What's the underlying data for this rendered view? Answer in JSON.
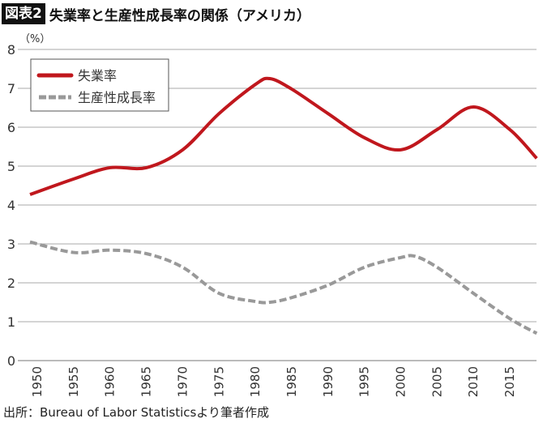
{
  "header": {
    "badge": "図表2",
    "title": "失業率と生産性成長率の関係（アメリカ）"
  },
  "source": "出所：Bureau of Labor Statisticsより筆者作成",
  "chart_data": {
    "type": "line",
    "title": "失業率と生産性成長率の関係（アメリカ）",
    "ylabel": "（%）",
    "ylim": [
      0,
      8
    ],
    "yticks": [
      "0",
      "1",
      "2",
      "3",
      "4",
      "5",
      "6",
      "7",
      "8"
    ],
    "xticks": [
      "1950",
      "1955",
      "1960",
      "1965",
      "1970",
      "1975",
      "1980",
      "1985",
      "1990",
      "1995",
      "2000",
      "2005",
      "2010",
      "2015"
    ],
    "xlim": [
      1949,
      2018.7
    ],
    "grid": "horizontal",
    "legend": "top-left",
    "series": [
      {
        "name": "失業率",
        "color": "#c0171d",
        "style": "solid",
        "x": [
          1949,
          1955,
          1960,
          1965,
          1970,
          1975,
          1980,
          1982,
          1985,
          1990,
          1995,
          2000,
          2005,
          2010,
          2015,
          2018.7
        ],
        "y": [
          4.27,
          4.67,
          4.96,
          4.96,
          5.42,
          6.35,
          7.1,
          7.25,
          6.98,
          6.35,
          5.73,
          5.42,
          5.94,
          6.52,
          5.94,
          5.2
        ]
      },
      {
        "name": "生産性成長率",
        "color": "#999999",
        "style": "dashed",
        "x": [
          1949,
          1955,
          1960,
          1965,
          1970,
          1975,
          1980,
          1982,
          1985,
          1990,
          1995,
          2000,
          2002,
          2005,
          2010,
          2015,
          2018.7
        ],
        "y": [
          3.05,
          2.78,
          2.84,
          2.75,
          2.4,
          1.73,
          1.52,
          1.5,
          1.62,
          1.94,
          2.4,
          2.65,
          2.68,
          2.4,
          1.73,
          1.08,
          0.7
        ]
      }
    ]
  }
}
